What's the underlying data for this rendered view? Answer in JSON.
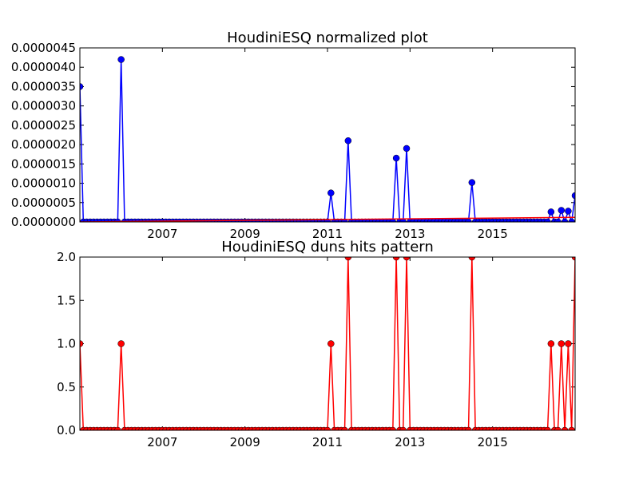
{
  "chart_data": [
    {
      "type": "line",
      "title": "HoudiniESQ normalized plot",
      "xlabel": "",
      "ylabel": "",
      "x_tick_labels": [
        "2007",
        "2009",
        "2011",
        "2013",
        "2015"
      ],
      "y_tick_labels": [
        "0.0000000",
        "0.0000005",
        "0.0000010",
        "0.0000015",
        "0.0000020",
        "0.0000025",
        "0.0000030",
        "0.0000035",
        "0.0000040",
        "0.0000045"
      ],
      "ylim": [
        0,
        4.5e-06
      ],
      "grid": false,
      "series": [
        {
          "color": "#0000ff",
          "marker": "circle",
          "marker_color": "#0000ff",
          "points": [
            [
              "2005-01",
              3.5e-06
            ],
            [
              "2006-01",
              4.2e-06
            ],
            [
              "2011-02",
              7.5e-07
            ],
            [
              "2011-07",
              2.1e-06
            ],
            [
              "2012-09",
              1.65e-06
            ],
            [
              "2012-12",
              1.9e-06
            ],
            [
              "2014-07",
              1.02e-06
            ],
            [
              "2016-06",
              2.6e-07
            ],
            [
              "2016-09",
              3e-07
            ],
            [
              "2016-11",
              2.8e-07
            ],
            [
              "2017-01",
              6.8e-07
            ]
          ]
        },
        {
          "color": "#ff0000",
          "marker": "none",
          "points": [
            [
              "2005-01",
              0.0
            ],
            [
              "2017-01",
              1.2e-07
            ]
          ]
        }
      ]
    },
    {
      "type": "line",
      "title": "HoudiniESQ duns hits pattern",
      "xlabel": "",
      "ylabel": "",
      "x_tick_labels": [
        "2007",
        "2009",
        "2011",
        "2013",
        "2015"
      ],
      "y_tick_labels": [
        "0.0",
        "0.5",
        "1.0",
        "1.5",
        "2.0"
      ],
      "ylim": [
        0,
        2
      ],
      "grid": false,
      "series": [
        {
          "color": "#ff0000",
          "marker": "circle",
          "marker_color": "#ff0000",
          "points": [
            [
              "2005-01",
              1
            ],
            [
              "2006-01",
              1
            ],
            [
              "2011-02",
              1
            ],
            [
              "2011-07",
              2
            ],
            [
              "2012-09",
              2
            ],
            [
              "2012-12",
              2
            ],
            [
              "2014-07",
              2
            ],
            [
              "2016-06",
              1
            ],
            [
              "2016-09",
              1
            ],
            [
              "2016-11",
              1
            ],
            [
              "2017-01",
              2
            ]
          ]
        }
      ]
    }
  ]
}
